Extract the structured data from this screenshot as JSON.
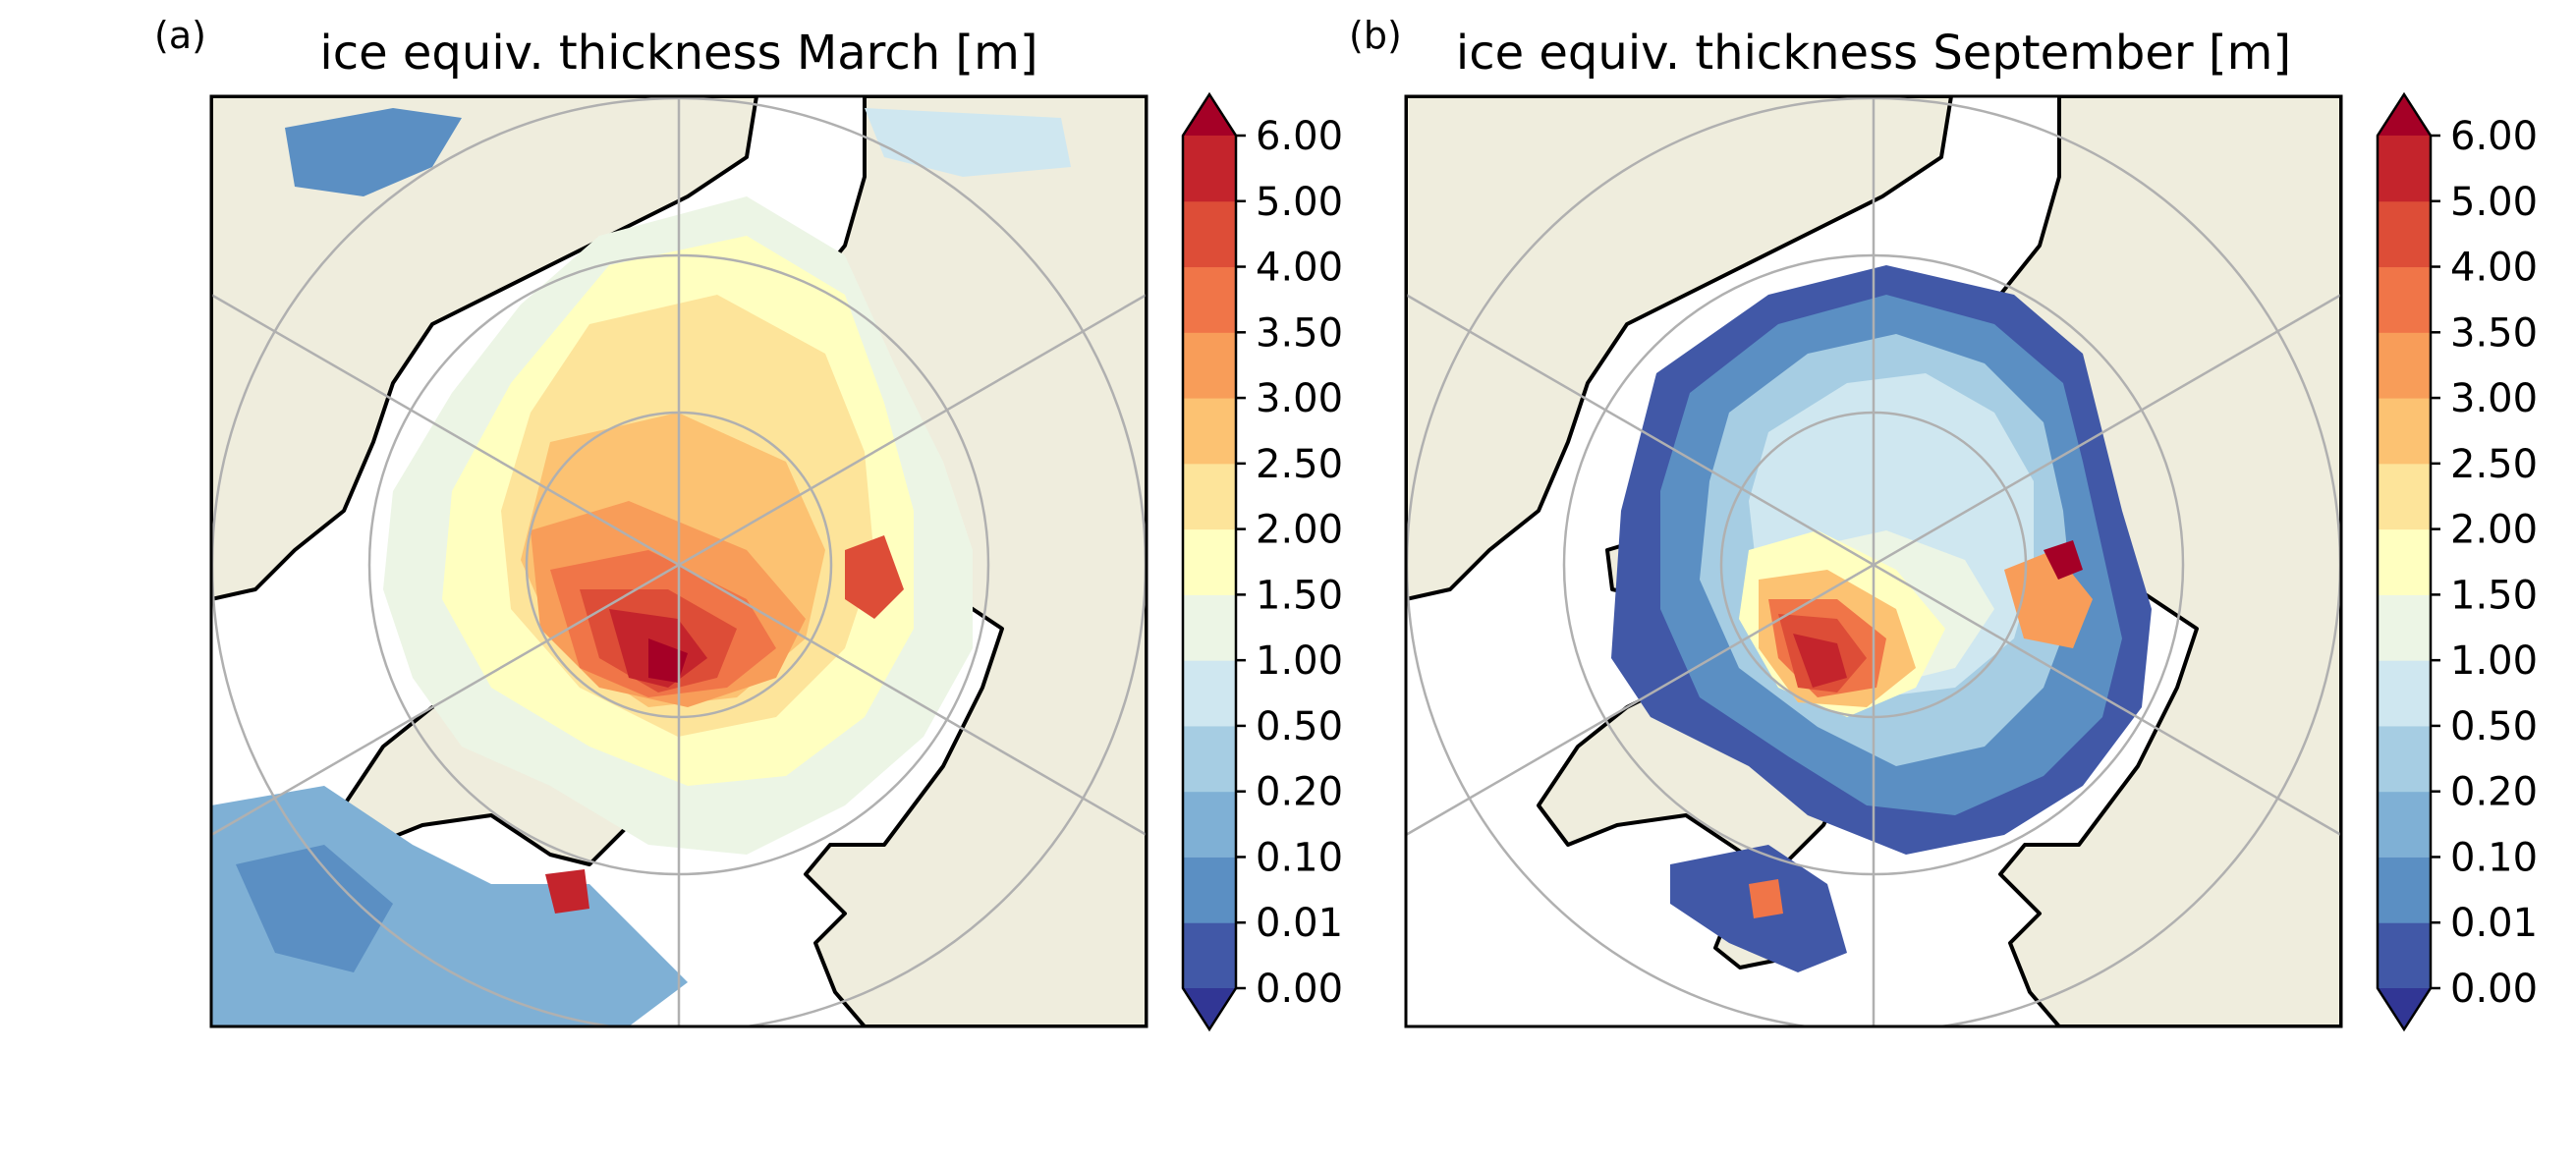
{
  "panels": [
    {
      "label": "(a)",
      "title": "ice equiv. thickness March [m]",
      "month": "March",
      "field_summary": "thick ice (3.5 to over 6 m) north of Greenland and the Canadian Archipelago; 2 to 3 m over most of the central Arctic; thinning below 1 m toward the Atlantic, Barents and Bering sides; 0.01 to 0.5 m patches in the Labrador and Greenland seas"
    },
    {
      "label": "(b)",
      "title": "ice equiv. thickness September [m]",
      "month": "September",
      "field_summary": "ice retreats to the central Arctic; 4 to over 6 m north of Greenland and the Canadian Archipelago; 0.5 to 1.5 m over most of the central basin; 0.01 to 0.2 m along the ice edge; open water elsewhere"
    }
  ],
  "colorbar": {
    "tick_labels": [
      "6.00",
      "5.00",
      "4.00",
      "3.50",
      "3.00",
      "2.50",
      "2.00",
      "1.50",
      "1.00",
      "0.50",
      "0.20",
      "0.10",
      "0.01",
      "0.00"
    ],
    "levels": [
      0.0,
      0.01,
      0.1,
      0.2,
      0.5,
      1.0,
      1.5,
      2.0,
      2.5,
      3.0,
      3.5,
      4.0,
      5.0,
      6.0
    ],
    "colors": [
      "#4158a7",
      "#5b8fc3",
      "#7fb0d5",
      "#a6cde3",
      "#cfe7f0",
      "#ecf5e5",
      "#ffffc0",
      "#fde49a",
      "#fcc272",
      "#f89d59",
      "#f07548",
      "#dd4d37",
      "#c4242c"
    ],
    "under_color": "#313695",
    "over_color": "#a50026",
    "extend": "both"
  },
  "style": {
    "land_color": "#efeddd",
    "ocean_color": "#ffffff",
    "coast_color": "#000000",
    "grid_color": "#b0b0b0",
    "colormap": "RdYlBu_r"
  }
}
